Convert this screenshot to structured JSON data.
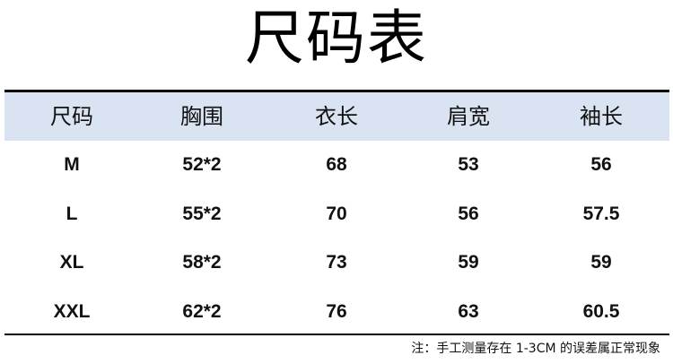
{
  "title": "尺码表",
  "headers": [
    "尺码",
    "胸围",
    "衣长",
    "肩宽",
    "袖长"
  ],
  "rows": [
    [
      "M",
      "52*2",
      "68",
      "53",
      "56"
    ],
    [
      "L",
      "55*2",
      "70",
      "56",
      "57.5"
    ],
    [
      "XL",
      "58*2",
      "73",
      "59",
      "59"
    ],
    [
      "XXL",
      "62*2",
      "76",
      "63",
      "60.5"
    ]
  ],
  "note": "注：手工测量存在 1-3CM 的误差属正常现象",
  "colors": {
    "header_bg": "#dae3f1",
    "rule": "#000000"
  }
}
